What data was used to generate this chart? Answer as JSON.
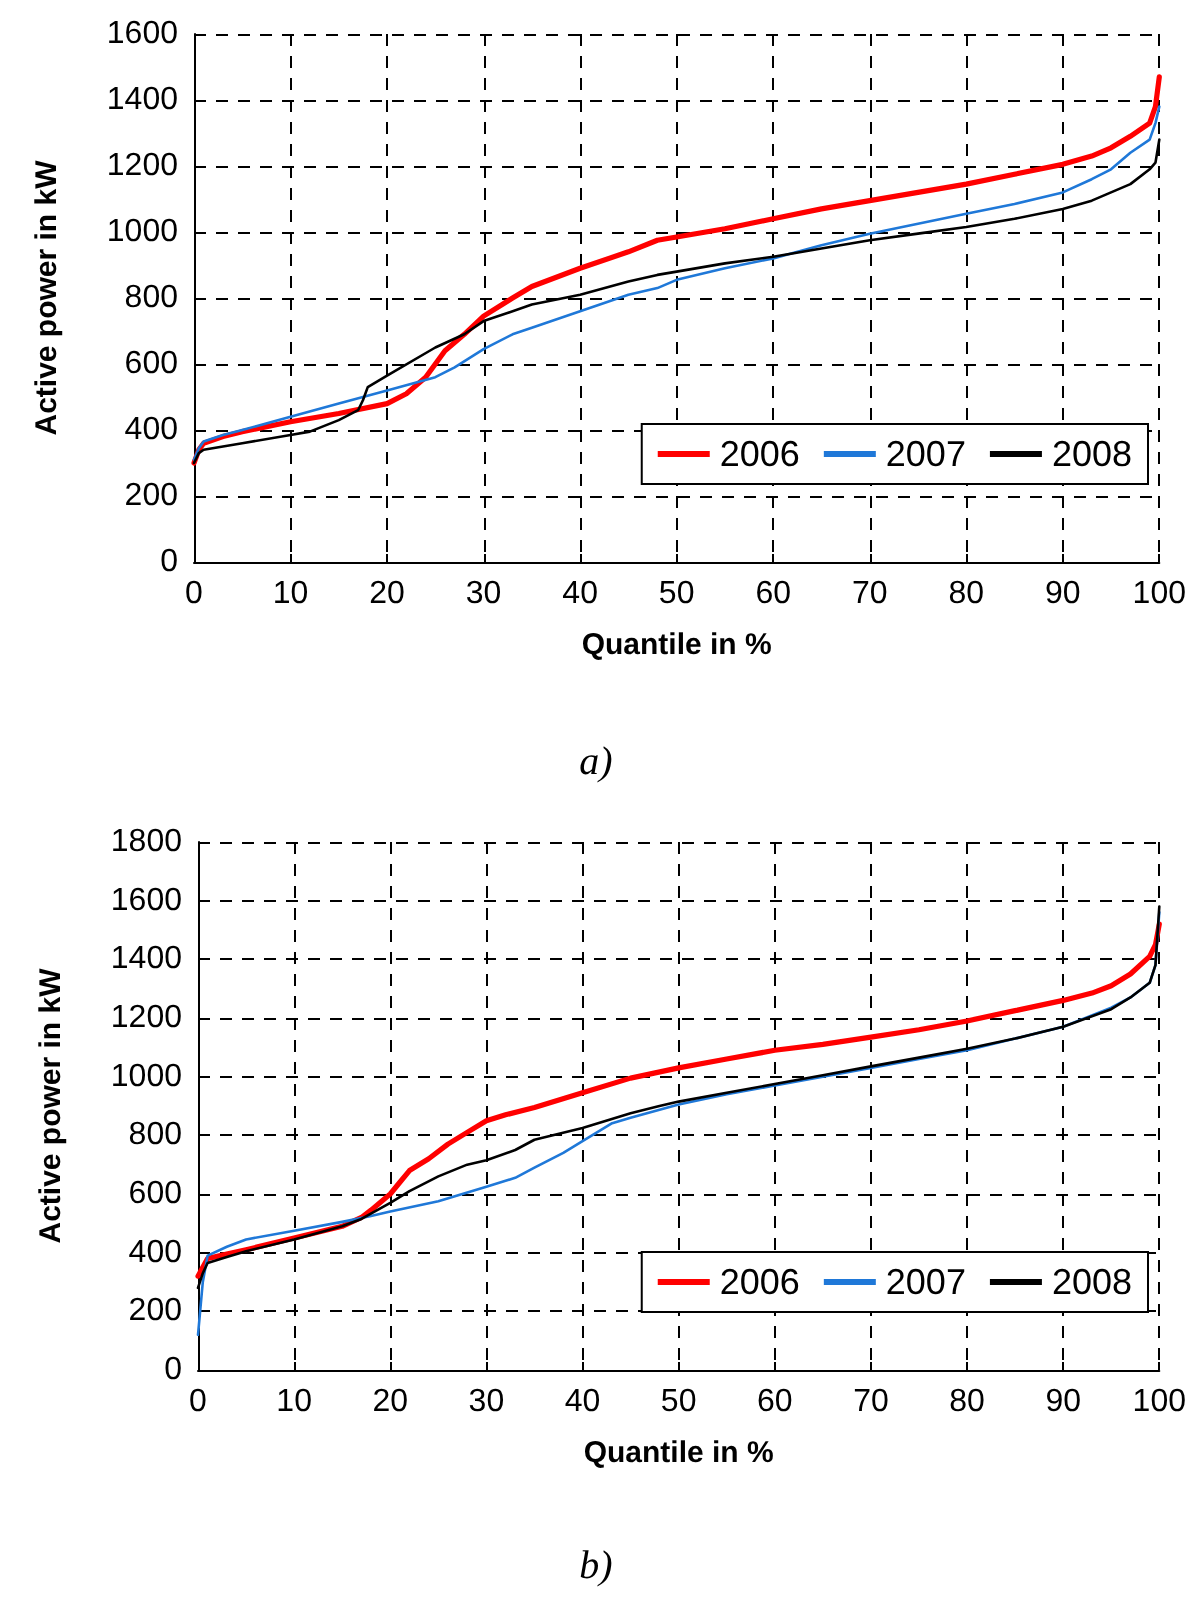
{
  "chart_data": [
    {
      "type": "line",
      "title": "a)",
      "xlabel": "Quantile in %",
      "ylabel": "Active power in kW",
      "xlim": [
        0,
        100
      ],
      "xticks": [
        0,
        10,
        20,
        30,
        40,
        50,
        60,
        70,
        80,
        90,
        100
      ],
      "ylim": [
        0,
        1600
      ],
      "yticks": [
        0,
        200,
        400,
        600,
        800,
        1000,
        1200,
        1400,
        1600
      ],
      "grid": true,
      "legend": "bottom right",
      "marker": "none",
      "line_style": "solid",
      "series": [
        {
          "name": "2006",
          "color": "#ff0000",
          "x": [
            0,
            0.5,
            1,
            3,
            5,
            10,
            15,
            20,
            22,
            24,
            26,
            28,
            30,
            33,
            35,
            40,
            45,
            48,
            50,
            55,
            60,
            65,
            70,
            75,
            80,
            85,
            90,
            93,
            95,
            97,
            99,
            99.6,
            100
          ],
          "values": [
            300,
            340,
            360,
            380,
            395,
            425,
            450,
            480,
            510,
            560,
            640,
            690,
            745,
            800,
            835,
            890,
            940,
            975,
            985,
            1010,
            1040,
            1070,
            1095,
            1120,
            1145,
            1175,
            1205,
            1230,
            1255,
            1290,
            1330,
            1380,
            1470
          ]
        },
        {
          "name": "2007",
          "color": "#1f78d8",
          "x": [
            0,
            0.5,
            1,
            3,
            5,
            10,
            15,
            20,
            25,
            27,
            30,
            33,
            35,
            40,
            45,
            48,
            50,
            55,
            60,
            65,
            70,
            75,
            80,
            85,
            90,
            93,
            95,
            97,
            99,
            99.6,
            100
          ],
          "values": [
            310,
            345,
            365,
            385,
            400,
            440,
            480,
            520,
            560,
            590,
            645,
            690,
            710,
            760,
            810,
            830,
            855,
            890,
            920,
            960,
            995,
            1025,
            1055,
            1085,
            1120,
            1160,
            1190,
            1240,
            1280,
            1330,
            1380
          ]
        },
        {
          "name": "2008",
          "color": "#000000",
          "x": [
            0,
            0.5,
            1,
            3,
            5,
            10,
            12,
            15,
            17,
            17.5,
            18,
            20,
            25,
            28,
            30,
            35,
            40,
            45,
            48,
            50,
            55,
            60,
            65,
            70,
            75,
            80,
            85,
            90,
            93,
            95,
            97,
            99,
            99.6,
            100
          ],
          "values": [
            300,
            330,
            340,
            350,
            360,
            385,
            395,
            430,
            460,
            490,
            530,
            565,
            650,
            690,
            730,
            780,
            810,
            850,
            870,
            880,
            905,
            925,
            950,
            975,
            995,
            1015,
            1040,
            1070,
            1095,
            1120,
            1145,
            1190,
            1210,
            1280
          ]
        }
      ]
    },
    {
      "type": "line",
      "title": "b)",
      "xlabel": "Quantile in %",
      "ylabel": "Active power in kW",
      "xlim": [
        0,
        100
      ],
      "xticks": [
        0,
        10,
        20,
        30,
        40,
        50,
        60,
        70,
        80,
        90,
        100
      ],
      "ylim": [
        0,
        1800
      ],
      "yticks": [
        0,
        200,
        400,
        600,
        800,
        1000,
        1200,
        1400,
        1600,
        1800
      ],
      "grid": true,
      "legend": "bottom right",
      "marker": "none",
      "line_style": "solid",
      "series": [
        {
          "name": "2006",
          "color": "#ff0000",
          "x": [
            0,
            0.5,
            1,
            3,
            5,
            10,
            15,
            17,
            18,
            20,
            21,
            22,
            24,
            26,
            28,
            30,
            32,
            35,
            40,
            45,
            50,
            55,
            60,
            65,
            70,
            75,
            80,
            85,
            90,
            93,
            95,
            97,
            99,
            99.6,
            100
          ],
          "values": [
            320,
            350,
            380,
            395,
            410,
            450,
            490,
            520,
            545,
            600,
            640,
            680,
            720,
            770,
            810,
            850,
            870,
            895,
            945,
            995,
            1030,
            1060,
            1090,
            1110,
            1135,
            1160,
            1190,
            1225,
            1260,
            1285,
            1310,
            1350,
            1410,
            1450,
            1520
          ]
        },
        {
          "name": "2007",
          "color": "#1f78d8",
          "x": [
            0,
            0.5,
            1,
            3,
            5,
            10,
            15,
            18,
            20,
            25,
            30,
            33,
            35,
            38,
            40,
            43,
            45,
            50,
            55,
            60,
            65,
            70,
            75,
            80,
            85,
            90,
            95,
            97,
            99,
            99.6,
            100
          ],
          "values": [
            120,
            300,
            390,
            420,
            445,
            475,
            505,
            525,
            540,
            575,
            625,
            655,
            690,
            740,
            780,
            840,
            860,
            905,
            940,
            970,
            1000,
            1030,
            1060,
            1090,
            1130,
            1170,
            1235,
            1270,
            1320,
            1380,
            1560
          ]
        },
        {
          "name": "2008",
          "color": "#000000",
          "x": [
            0,
            0.5,
            1,
            3,
            5,
            10,
            15,
            17,
            20,
            22,
            25,
            28,
            30,
            33,
            35,
            40,
            45,
            48,
            50,
            55,
            60,
            65,
            70,
            75,
            80,
            85,
            90,
            95,
            97,
            99,
            99.6,
            100
          ],
          "values": [
            280,
            330,
            365,
            385,
            405,
            445,
            490,
            515,
            570,
            610,
            660,
            700,
            715,
            750,
            785,
            825,
            875,
            900,
            915,
            945,
            975,
            1005,
            1035,
            1065,
            1095,
            1130,
            1170,
            1230,
            1270,
            1320,
            1380,
            1580
          ]
        }
      ]
    }
  ]
}
